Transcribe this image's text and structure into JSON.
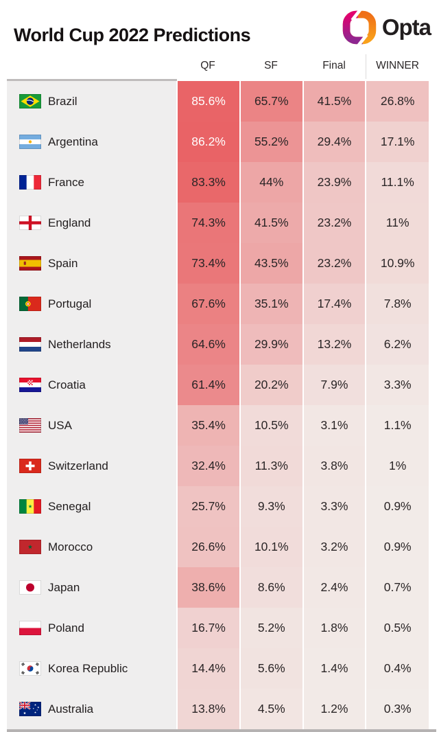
{
  "header": {
    "title": "World Cup 2022 Predictions",
    "brand": "Opta"
  },
  "chart_data": {
    "type": "heatmap",
    "title": "World Cup 2022 Predictions",
    "columns": [
      "QF",
      "SF",
      "Final",
      "WINNER"
    ],
    "unit": "%",
    "rows": [
      {
        "team": "Brazil",
        "flag": "brazil",
        "values": [
          85.6,
          65.7,
          41.5,
          26.8
        ]
      },
      {
        "team": "Argentina",
        "flag": "argentina",
        "values": [
          86.2,
          55.2,
          29.4,
          17.1
        ]
      },
      {
        "team": "France",
        "flag": "france",
        "values": [
          83.3,
          44,
          23.9,
          11.1
        ]
      },
      {
        "team": "England",
        "flag": "england",
        "values": [
          74.3,
          41.5,
          23.2,
          11
        ]
      },
      {
        "team": "Spain",
        "flag": "spain",
        "values": [
          73.4,
          43.5,
          23.2,
          10.9
        ]
      },
      {
        "team": "Portugal",
        "flag": "portugal",
        "values": [
          67.6,
          35.1,
          17.4,
          7.8
        ]
      },
      {
        "team": "Netherlands",
        "flag": "netherlands",
        "values": [
          64.6,
          29.9,
          13.2,
          6.2
        ]
      },
      {
        "team": "Croatia",
        "flag": "croatia",
        "values": [
          61.4,
          20.2,
          7.9,
          3.3
        ]
      },
      {
        "team": "USA",
        "flag": "usa",
        "values": [
          35.4,
          10.5,
          3.1,
          1.1
        ]
      },
      {
        "team": "Switzerland",
        "flag": "switzerland",
        "values": [
          32.4,
          11.3,
          3.8,
          1
        ]
      },
      {
        "team": "Senegal",
        "flag": "senegal",
        "values": [
          25.7,
          9.3,
          3.3,
          0.9
        ]
      },
      {
        "team": "Morocco",
        "flag": "morocco",
        "values": [
          26.6,
          10.1,
          3.2,
          0.9
        ]
      },
      {
        "team": "Japan",
        "flag": "japan",
        "values": [
          38.6,
          8.6,
          2.4,
          0.7
        ]
      },
      {
        "team": "Poland",
        "flag": "poland",
        "values": [
          16.7,
          5.2,
          1.8,
          0.5
        ]
      },
      {
        "team": "Korea Republic",
        "flag": "korea-republic",
        "values": [
          14.4,
          5.6,
          1.4,
          0.4
        ]
      },
      {
        "team": "Australia",
        "flag": "australia",
        "values": [
          13.8,
          4.5,
          1.2,
          0.3
        ]
      }
    ]
  },
  "style": {
    "heat_low": "#f2ece9",
    "heat_high": "#e74d51",
    "white_text_threshold": 85,
    "label_bg": "#efeeee",
    "text_dark": "#2a2526",
    "text_light": "#ffffff",
    "brand": {
      "magenta": "#e2006e",
      "purple": "#8d2690",
      "orange_dark": "#ef6f17",
      "orange_light": "#f9a11b"
    }
  }
}
